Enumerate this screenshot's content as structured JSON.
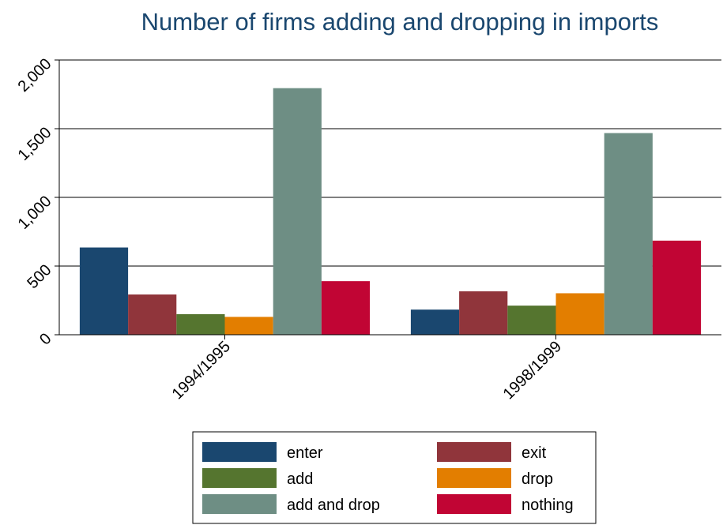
{
  "chart_data": {
    "type": "bar",
    "title": "Number of firms adding and dropping in imports",
    "xlabel": "",
    "ylabel": "",
    "categories": [
      "1994/1995",
      "1998/1999"
    ],
    "series": [
      {
        "name": "enter",
        "color": "#1a476f",
        "values": [
          635,
          183
        ]
      },
      {
        "name": "exit",
        "color": "#90353b",
        "values": [
          293,
          316
        ]
      },
      {
        "name": "add",
        "color": "#55752f",
        "values": [
          150,
          212
        ]
      },
      {
        "name": "drop",
        "color": "#e37e00",
        "values": [
          130,
          302
        ]
      },
      {
        "name": "add and drop",
        "color": "#6e8e84",
        "values": [
          1795,
          1468
        ]
      },
      {
        "name": "nothing",
        "color": "#c10534",
        "values": [
          390,
          685
        ]
      }
    ],
    "ylim": [
      0,
      2000
    ],
    "yticks": [
      0,
      500,
      1000,
      1500,
      2000
    ],
    "ytick_labels": [
      "0",
      "500",
      "1,000",
      "1,500",
      "2,000"
    ],
    "grid": true,
    "legend": {
      "position": "bottom",
      "columns": 2
    }
  }
}
